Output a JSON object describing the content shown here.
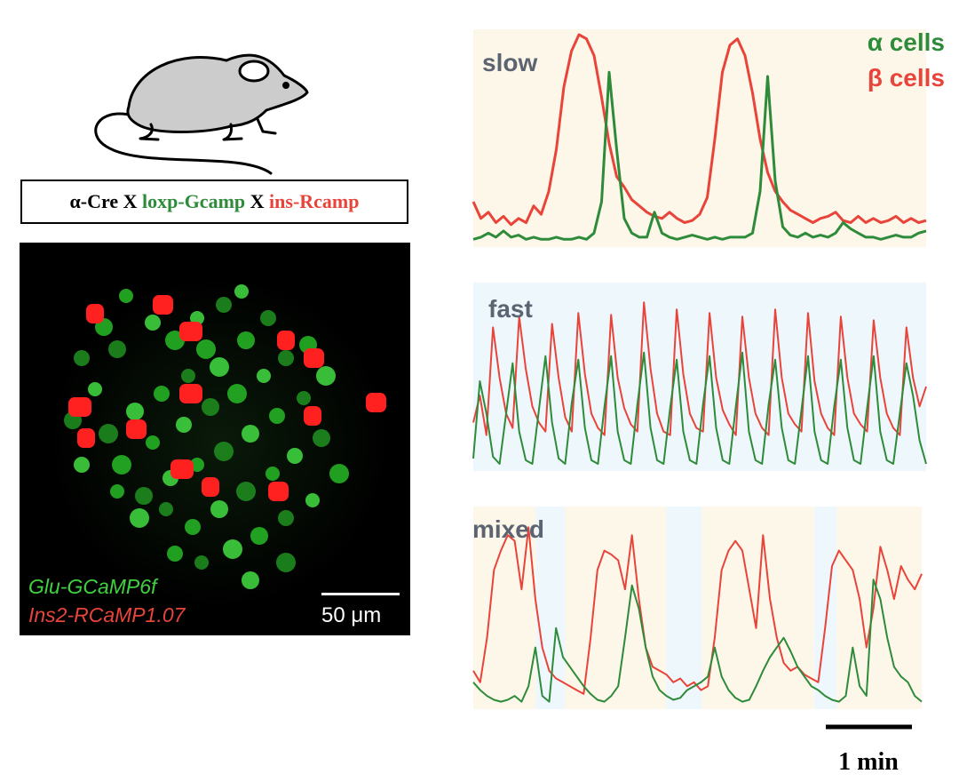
{
  "genotype": {
    "part1": "α-Cre",
    "x1": "X",
    "part2": "loxp-Gcamp",
    "x2": "X",
    "part3": "ins-Rcamp"
  },
  "micrograph": {
    "label_green": "Glu-GCaMP6f",
    "label_red": "Ins2-RCaMP1.07",
    "scale_label": "50 μm"
  },
  "time_scale_label": "1 min",
  "colors": {
    "alpha": "#2e8b3a",
    "beta": "#e8443a",
    "slow_bg": "#fdf7ea",
    "fast_bg": "#eef7fc"
  },
  "chart_data": [
    {
      "type": "line",
      "title": "slow",
      "legend": [
        "α cells",
        "β cells"
      ],
      "x": [
        0,
        1,
        2,
        3,
        4,
        5,
        6,
        7,
        8,
        9,
        10,
        11,
        12,
        13,
        14,
        15,
        16,
        17,
        18,
        19,
        20,
        21,
        22,
        23,
        24,
        25,
        26,
        27,
        28,
        29,
        30,
        31,
        32,
        33,
        34,
        35,
        36,
        37,
        38,
        39,
        40,
        41,
        42,
        43,
        44,
        45,
        46,
        47,
        48,
        49,
        50,
        51,
        52,
        53,
        54,
        55,
        56,
        57,
        58,
        59,
        60
      ],
      "series": [
        {
          "name": "β cells",
          "values": [
            0.2,
            0.12,
            0.15,
            0.1,
            0.13,
            0.09,
            0.12,
            0.1,
            0.18,
            0.14,
            0.25,
            0.45,
            0.75,
            0.92,
            1.0,
            0.98,
            0.9,
            0.7,
            0.48,
            0.32,
            0.27,
            0.21,
            0.18,
            0.15,
            0.13,
            0.12,
            0.15,
            0.12,
            0.1,
            0.11,
            0.14,
            0.22,
            0.5,
            0.82,
            0.95,
            0.98,
            0.9,
            0.72,
            0.5,
            0.34,
            0.25,
            0.2,
            0.16,
            0.14,
            0.12,
            0.1,
            0.12,
            0.13,
            0.15,
            0.11,
            0.1,
            0.13,
            0.1,
            0.12,
            0.1,
            0.11,
            0.13,
            0.1,
            0.12,
            0.1,
            0.11
          ]
        },
        {
          "name": "α cells",
          "values": [
            0.02,
            0.03,
            0.05,
            0.03,
            0.06,
            0.03,
            0.04,
            0.02,
            0.03,
            0.02,
            0.02,
            0.03,
            0.02,
            0.02,
            0.03,
            0.02,
            0.05,
            0.2,
            0.82,
            0.45,
            0.12,
            0.05,
            0.03,
            0.03,
            0.15,
            0.05,
            0.03,
            0.02,
            0.03,
            0.04,
            0.03,
            0.02,
            0.03,
            0.02,
            0.03,
            0.03,
            0.03,
            0.05,
            0.25,
            0.8,
            0.3,
            0.08,
            0.04,
            0.03,
            0.05,
            0.03,
            0.04,
            0.03,
            0.05,
            0.1,
            0.07,
            0.05,
            0.03,
            0.03,
            0.02,
            0.03,
            0.04,
            0.03,
            0.03,
            0.05,
            0.06
          ]
        }
      ]
    },
    {
      "type": "line",
      "title": "fast",
      "legend": [],
      "x": [
        0,
        1,
        2,
        3,
        4,
        5,
        6,
        7,
        8,
        9,
        10,
        11,
        12,
        13,
        14,
        15,
        16,
        17,
        18,
        19,
        20,
        21,
        22,
        23,
        24,
        25,
        26,
        27,
        28,
        29,
        30,
        31,
        32,
        33,
        34,
        35,
        36,
        37,
        38,
        39,
        40,
        41,
        42,
        43,
        44,
        45,
        46,
        47,
        48,
        49,
        50,
        51,
        52,
        53,
        54,
        55,
        56,
        57,
        58,
        59,
        60,
        61,
        62,
        63,
        64,
        65,
        66,
        67,
        68,
        69
      ],
      "series": [
        {
          "name": "β cells",
          "values": [
            0.25,
            0.4,
            0.18,
            0.78,
            0.5,
            0.3,
            0.22,
            0.84,
            0.55,
            0.34,
            0.25,
            0.2,
            0.8,
            0.5,
            0.28,
            0.2,
            0.86,
            0.52,
            0.3,
            0.22,
            0.18,
            0.85,
            0.5,
            0.33,
            0.24,
            0.2,
            0.92,
            0.55,
            0.3,
            0.2,
            0.18,
            0.88,
            0.52,
            0.3,
            0.22,
            0.2,
            0.86,
            0.5,
            0.32,
            0.24,
            0.18,
            0.84,
            0.5,
            0.3,
            0.22,
            0.18,
            0.88,
            0.5,
            0.3,
            0.24,
            0.2,
            0.86,
            0.48,
            0.3,
            0.22,
            0.18,
            0.84,
            0.5,
            0.3,
            0.24,
            0.2,
            0.82,
            0.5,
            0.3,
            0.22,
            0.18,
            0.78,
            0.5,
            0.34,
            0.45
          ]
        },
        {
          "name": "α cells",
          "values": [
            0.05,
            0.48,
            0.3,
            0.06,
            0.02,
            0.3,
            0.58,
            0.2,
            0.04,
            0.02,
            0.32,
            0.62,
            0.25,
            0.05,
            0.02,
            0.36,
            0.6,
            0.22,
            0.04,
            0.02,
            0.34,
            0.62,
            0.2,
            0.04,
            0.02,
            0.35,
            0.64,
            0.22,
            0.04,
            0.02,
            0.33,
            0.6,
            0.2,
            0.04,
            0.02,
            0.35,
            0.62,
            0.22,
            0.04,
            0.02,
            0.34,
            0.64,
            0.2,
            0.04,
            0.02,
            0.35,
            0.6,
            0.22,
            0.04,
            0.02,
            0.32,
            0.62,
            0.2,
            0.04,
            0.02,
            0.34,
            0.6,
            0.22,
            0.04,
            0.02,
            0.33,
            0.62,
            0.2,
            0.04,
            0.02,
            0.3,
            0.58,
            0.4,
            0.15,
            0.02
          ]
        }
      ]
    },
    {
      "type": "line",
      "title": "mixed",
      "legend": [],
      "x": [
        0,
        1,
        2,
        3,
        4,
        5,
        6,
        7,
        8,
        9,
        10,
        11,
        12,
        13,
        14,
        15,
        16,
        17,
        18,
        19,
        20,
        21,
        22,
        23,
        24,
        25,
        26,
        27,
        28,
        29,
        30,
        31,
        32,
        33,
        34,
        35,
        36,
        37,
        38,
        39,
        40,
        41,
        42,
        43,
        44,
        45,
        46,
        47,
        48,
        49,
        50,
        51,
        52,
        53,
        54,
        55,
        56,
        57,
        58,
        59,
        60,
        61,
        62,
        63,
        64,
        65
      ],
      "series": [
        {
          "name": "β cells",
          "values": [
            0.18,
            0.12,
            0.35,
            0.7,
            0.8,
            0.88,
            0.85,
            0.6,
            0.92,
            0.55,
            0.3,
            0.18,
            0.14,
            0.12,
            0.1,
            0.08,
            0.06,
            0.35,
            0.7,
            0.8,
            0.78,
            0.75,
            0.6,
            0.88,
            0.55,
            0.3,
            0.2,
            0.18,
            0.16,
            0.12,
            0.14,
            0.1,
            0.12,
            0.08,
            0.1,
            0.35,
            0.7,
            0.8,
            0.85,
            0.8,
            0.6,
            0.4,
            0.88,
            0.55,
            0.35,
            0.22,
            0.18,
            0.2,
            0.16,
            0.14,
            0.12,
            0.4,
            0.72,
            0.8,
            0.75,
            0.7,
            0.55,
            0.3,
            0.5,
            0.82,
            0.7,
            0.55,
            0.72,
            0.65,
            0.6,
            0.68
          ]
        },
        {
          "name": "α cells",
          "values": [
            0.12,
            0.08,
            0.05,
            0.03,
            0.02,
            0.03,
            0.05,
            0.02,
            0.1,
            0.3,
            0.05,
            0.02,
            0.4,
            0.25,
            0.2,
            0.15,
            0.1,
            0.06,
            0.03,
            0.02,
            0.05,
            0.1,
            0.35,
            0.62,
            0.5,
            0.3,
            0.15,
            0.08,
            0.05,
            0.03,
            0.04,
            0.08,
            0.1,
            0.12,
            0.15,
            0.3,
            0.15,
            0.08,
            0.04,
            0.02,
            0.03,
            0.1,
            0.18,
            0.25,
            0.3,
            0.35,
            0.28,
            0.2,
            0.15,
            0.1,
            0.08,
            0.05,
            0.03,
            0.02,
            0.05,
            0.3,
            0.1,
            0.05,
            0.65,
            0.55,
            0.35,
            0.2,
            0.15,
            0.12,
            0.05,
            0.02
          ]
        }
      ]
    }
  ]
}
